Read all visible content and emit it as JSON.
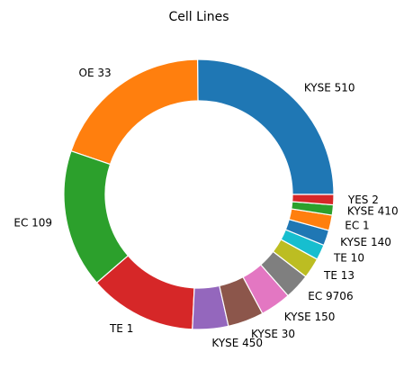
{
  "chart_data": {
    "type": "pie",
    "title": "Cell Lines",
    "donut": true,
    "start_direction": "right",
    "direction": "counterclockwise",
    "slice_edge_color": "#ffffff",
    "slices": [
      {
        "label": "KYSE 510",
        "value": 41,
        "color": "#1f77b4"
      },
      {
        "label": "OE 33",
        "value": 32,
        "color": "#ff7f0e"
      },
      {
        "label": "EC 109",
        "value": 27,
        "color": "#2ca02c"
      },
      {
        "label": "TE 1",
        "value": 21,
        "color": "#d62728"
      },
      {
        "label": "KYSE 450",
        "value": 7,
        "color": "#9467bd"
      },
      {
        "label": "KYSE 30",
        "value": 7,
        "color": "#8c564b"
      },
      {
        "label": "KYSE 150",
        "value": 6,
        "color": "#e377c2"
      },
      {
        "label": "EC 9706",
        "value": 5,
        "color": "#7f7f7f"
      },
      {
        "label": "TE 13",
        "value": 4,
        "color": "#bcbd22"
      },
      {
        "label": "TE 10",
        "value": 3,
        "color": "#17becf"
      },
      {
        "label": "KYSE 140",
        "value": 3,
        "color": "#1f77b4"
      },
      {
        "label": "EC 1",
        "value": 3,
        "color": "#ff7f0e"
      },
      {
        "label": "KYSE 410",
        "value": 2,
        "color": "#2ca02c"
      },
      {
        "label": "YES 2",
        "value": 2,
        "color": "#d62728"
      }
    ]
  }
}
